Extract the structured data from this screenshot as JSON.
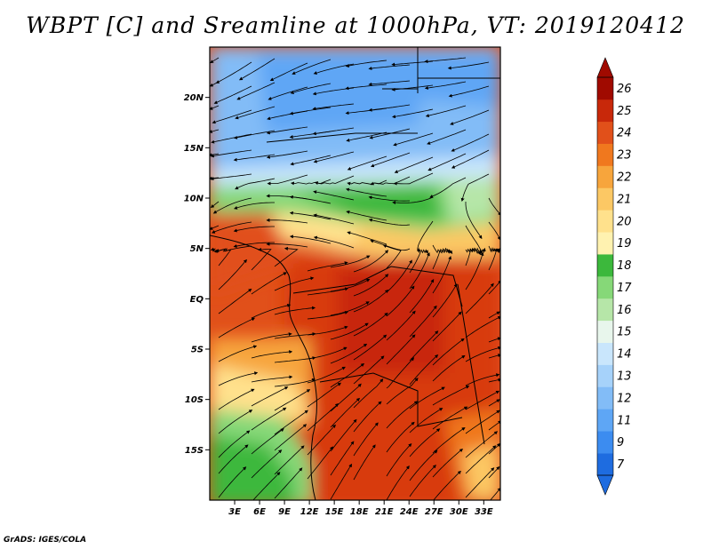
{
  "title": "WBPT [C] and Sreamline at 1000hPa, VT: 2019120412",
  "footer": "GrADS: IGES/COLA",
  "map": {
    "lat_labels": [
      "20N",
      "15N",
      "10N",
      "5N",
      "EQ",
      "5S",
      "10S",
      "15S"
    ],
    "lat_values": [
      20,
      15,
      10,
      5,
      0,
      -5,
      -10,
      -15
    ],
    "lon_labels": [
      "3E",
      "6E",
      "9E",
      "12E",
      "15E",
      "18E",
      "21E",
      "24E",
      "27E",
      "30E",
      "33E"
    ],
    "lon_values": [
      3,
      6,
      9,
      12,
      15,
      18,
      21,
      24,
      27,
      30,
      33
    ],
    "lat_range": [
      -20,
      25
    ],
    "lon_range": [
      0,
      35
    ]
  },
  "colorbar": {
    "labels": [
      "7",
      "9",
      "11",
      "12",
      "13",
      "14",
      "15",
      "16",
      "17",
      "18",
      "19",
      "20",
      "21",
      "22",
      "23",
      "24",
      "25",
      "26"
    ],
    "colors": [
      "#1e6ce0",
      "#3c8cf0",
      "#5ea6f5",
      "#82bcf7",
      "#a6d2fa",
      "#c9e6fc",
      "#e8f6ec",
      "#b6e6a8",
      "#86d878",
      "#3cb83c",
      "#fff2b0",
      "#ffe18c",
      "#fcc864",
      "#f7a53c",
      "#f0781e",
      "#e1501a",
      "#c8280a",
      "#a00a00"
    ]
  }
}
